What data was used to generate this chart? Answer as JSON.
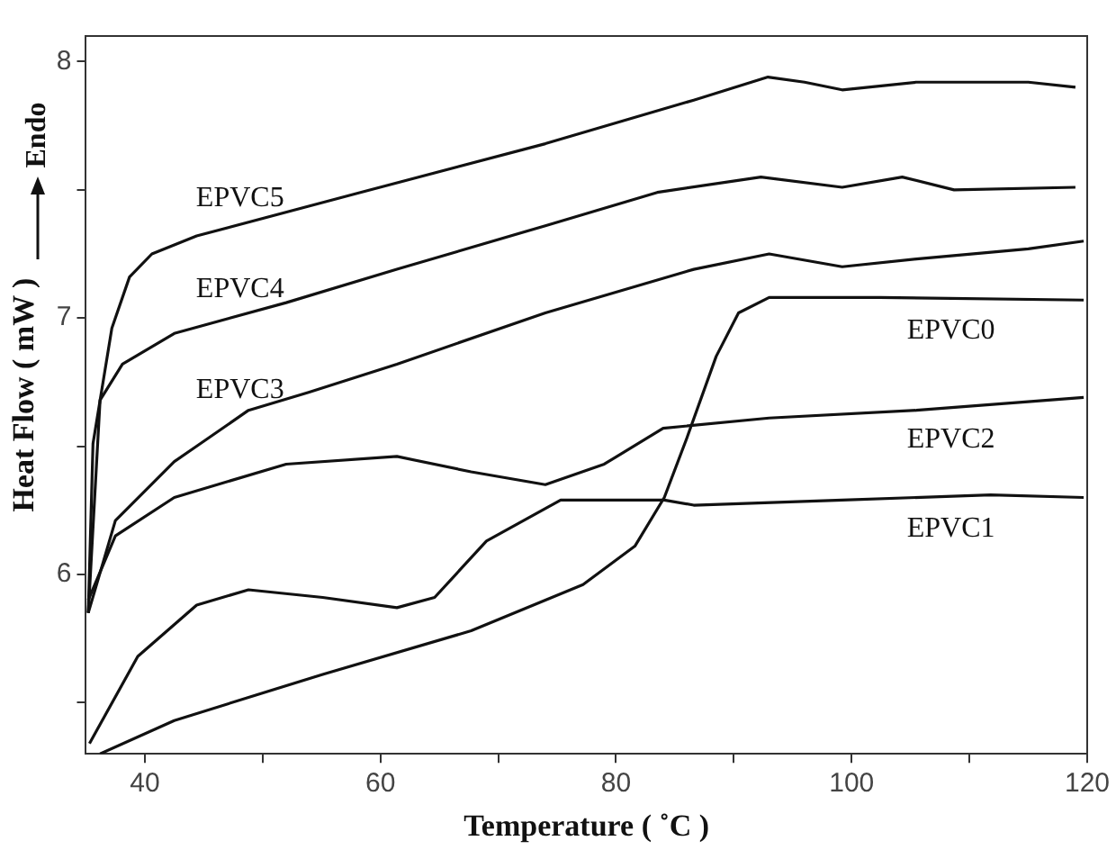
{
  "chart_data": {
    "type": "line",
    "xlabel": "Temperature ( ˚C )",
    "ylabel": "Heat Flow ( mW )",
    "annotations": [
      "Endo"
    ],
    "xlim": [
      35,
      120
    ],
    "ylim": [
      5.3,
      8.1
    ],
    "xticks": [
      40,
      {
        "value": 50,
        "label": null
      },
      60,
      {
        "value": 70,
        "label": null
      },
      80,
      {
        "value": 90,
        "label": null
      },
      100,
      {
        "value": 110,
        "label": null
      },
      120
    ],
    "yticks": [
      {
        "value": 5.5,
        "label": null
      },
      6,
      {
        "value": 6.5,
        "label": null
      },
      7,
      {
        "value": 7.5,
        "label": null
      },
      8
    ],
    "grid": false,
    "legend": false,
    "marker": "none",
    "line_style": "solid",
    "series": [
      {
        "name": "EPVC0",
        "color": "#111111",
        "x": [
          36.2,
          42.5,
          55.1,
          67.7,
          77.2,
          81.6,
          84.1,
          86,
          88.5,
          90.4,
          93,
          102.4,
          119.7
        ],
        "values": [
          5.3,
          5.43,
          5.61,
          5.78,
          5.96,
          6.11,
          6.3,
          6.53,
          6.85,
          7.02,
          7.08,
          7.08,
          7.07
        ]
      },
      {
        "name": "EPVC1",
        "color": "#111111",
        "x": [
          35.3,
          39.4,
          44.4,
          48.8,
          55.1,
          61.4,
          64.6,
          69,
          75.3,
          84.1,
          86.6,
          99.2,
          111.8,
          119.7
        ],
        "values": [
          5.34,
          5.68,
          5.88,
          5.94,
          5.91,
          5.87,
          5.91,
          6.13,
          6.29,
          6.29,
          6.27,
          6.29,
          6.31,
          6.3
        ]
      },
      {
        "name": "EPVC2",
        "color": "#111111",
        "x": [
          35.2,
          37.5,
          42.5,
          52,
          61.4,
          67.7,
          74,
          79,
          84,
          93,
          105.5,
          119.7
        ],
        "values": [
          5.9,
          6.15,
          6.3,
          6.43,
          6.46,
          6.4,
          6.35,
          6.43,
          6.57,
          6.61,
          6.64,
          6.69
        ]
      },
      {
        "name": "EPVC3",
        "color": "#111111",
        "x": [
          35.2,
          37.5,
          42.5,
          44.4,
          48.8,
          53.9,
          61.4,
          74,
          86.6,
          93,
          99.2,
          105.5,
          115,
          119.7
        ],
        "values": [
          5.85,
          6.21,
          6.44,
          6.5,
          6.64,
          6.71,
          6.82,
          7.02,
          7.19,
          7.25,
          7.2,
          7.23,
          7.27,
          7.3
        ]
      },
      {
        "name": "EPVC4",
        "color": "#111111",
        "x": [
          35.2,
          36.2,
          38.1,
          42.5,
          52,
          61.4,
          74,
          83.5,
          92.3,
          99.2,
          104.3,
          108.7,
          119
        ],
        "values": [
          5.85,
          6.68,
          6.82,
          6.94,
          7.06,
          7.19,
          7.36,
          7.49,
          7.55,
          7.51,
          7.55,
          7.5,
          7.51
        ]
      },
      {
        "name": "EPVC5",
        "color": "#111111",
        "x": [
          35.2,
          35.6,
          37.2,
          38.7,
          40.6,
          44.4,
          58.3,
          74,
          86.6,
          92.9,
          96,
          99.2,
          105.5,
          115,
          119
        ],
        "values": [
          5.85,
          6.51,
          6.96,
          7.16,
          7.25,
          7.32,
          7.49,
          7.68,
          7.85,
          7.94,
          7.92,
          7.89,
          7.92,
          7.92,
          7.9
        ]
      }
    ]
  }
}
